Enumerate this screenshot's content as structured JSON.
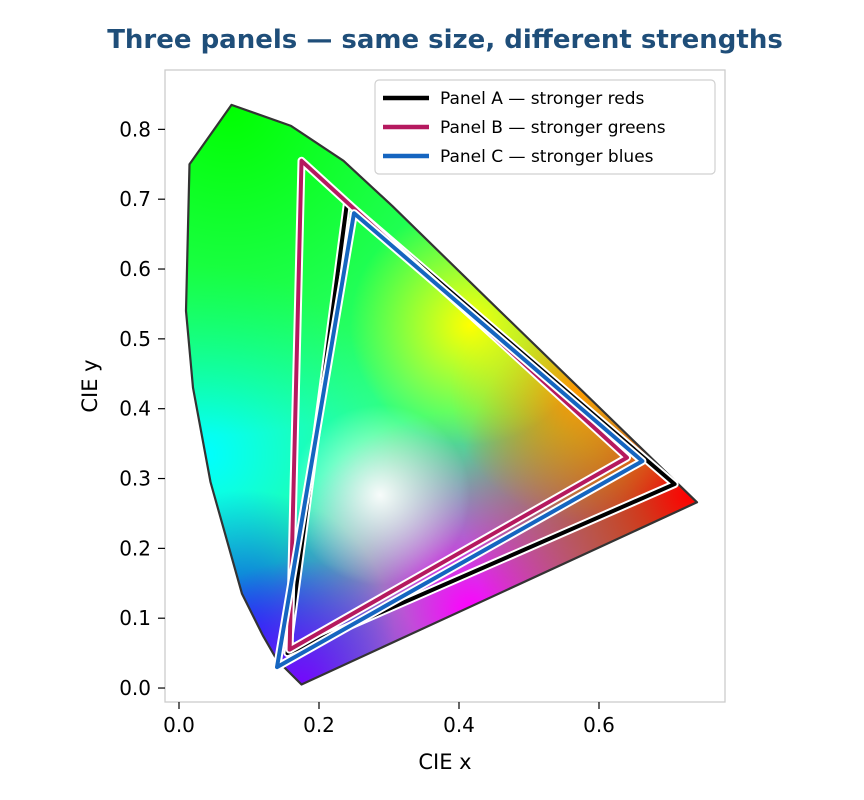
{
  "chart_data": {
    "type": "scatter",
    "title": "Three panels — same size, different strengths",
    "xlabel": "CIE x",
    "ylabel": "CIE y",
    "xlim": [
      -0.02,
      0.78
    ],
    "ylim": [
      -0.02,
      0.885
    ],
    "xticks": [
      0.0,
      0.2,
      0.4,
      0.6
    ],
    "yticks": [
      0.0,
      0.1,
      0.2,
      0.3,
      0.4,
      0.5,
      0.6,
      0.7,
      0.8
    ],
    "tick_labels_x": [
      "0.0",
      "0.2",
      "0.4",
      "0.6"
    ],
    "tick_labels_y": [
      "0.0",
      "0.1",
      "0.2",
      "0.3",
      "0.4",
      "0.5",
      "0.6",
      "0.7",
      "0.8"
    ],
    "grid": false,
    "legend_position": "top-right",
    "locus": [
      [
        0.175,
        0.005
      ],
      [
        0.14,
        0.04
      ],
      [
        0.12,
        0.075
      ],
      [
        0.09,
        0.135
      ],
      [
        0.045,
        0.295
      ],
      [
        0.02,
        0.43
      ],
      [
        0.01,
        0.54
      ],
      [
        0.015,
        0.75
      ],
      [
        0.075,
        0.835
      ],
      [
        0.16,
        0.805
      ],
      [
        0.235,
        0.755
      ],
      [
        0.305,
        0.69
      ],
      [
        0.45,
        0.548
      ],
      [
        0.74,
        0.266
      ]
    ],
    "series": [
      {
        "name": "Panel A — stronger reds",
        "color": "#000000",
        "vertices": [
          [
            0.708,
            0.292
          ],
          [
            0.24,
            0.695
          ],
          [
            0.155,
            0.05
          ]
        ]
      },
      {
        "name": "Panel B — stronger greens",
        "color": "#b5195f",
        "vertices": [
          [
            0.64,
            0.33
          ],
          [
            0.175,
            0.755
          ],
          [
            0.158,
            0.055
          ]
        ]
      },
      {
        "name": "Panel C — stronger blues",
        "color": "#1565c0",
        "vertices": [
          [
            0.662,
            0.325
          ],
          [
            0.25,
            0.68
          ],
          [
            0.14,
            0.03
          ]
        ]
      }
    ]
  }
}
